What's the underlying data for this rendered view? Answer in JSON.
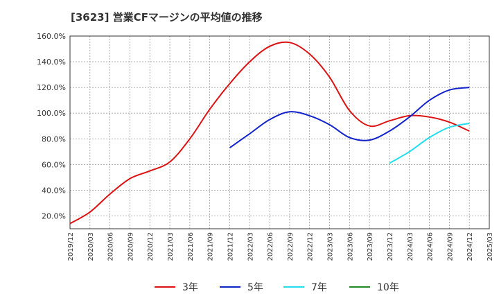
{
  "chart_data": {
    "type": "line",
    "title": "[3623]  営業CFマージンの平均値の推移",
    "xlabel": "",
    "ylabel": "",
    "x_ticks": [
      "2019/12",
      "2020/03",
      "2020/06",
      "2020/09",
      "2020/12",
      "2021/03",
      "2021/06",
      "2021/09",
      "2021/12",
      "2022/03",
      "2022/06",
      "2022/09",
      "2022/12",
      "2023/03",
      "2023/06",
      "2023/09",
      "2023/12",
      "2024/03",
      "2024/06",
      "2024/09",
      "2024/12",
      "2025/03"
    ],
    "y_ticks": [
      "20.0%",
      "40.0%",
      "60.0%",
      "80.0%",
      "100.0%",
      "120.0%",
      "140.0%",
      "160.0%"
    ],
    "ylim": [
      10,
      160
    ],
    "grid": true,
    "legend_position": "bottom",
    "series": [
      {
        "name": "3年",
        "color": "#dd1111",
        "values": [
          [
            "2019/12",
            14
          ],
          [
            "2020/03",
            23
          ],
          [
            "2020/06",
            37
          ],
          [
            "2020/09",
            49
          ],
          [
            "2020/12",
            55
          ],
          [
            "2021/03",
            62
          ],
          [
            "2021/06",
            80
          ],
          [
            "2021/09",
            103
          ],
          [
            "2021/12",
            123
          ],
          [
            "2022/03",
            140
          ],
          [
            "2022/06",
            152
          ],
          [
            "2022/09",
            155
          ],
          [
            "2022/12",
            146
          ],
          [
            "2023/03",
            128
          ],
          [
            "2023/06",
            102
          ],
          [
            "2023/09",
            90
          ],
          [
            "2023/12",
            94
          ],
          [
            "2024/03",
            98
          ],
          [
            "2024/06",
            97
          ],
          [
            "2024/09",
            93
          ],
          [
            "2024/12",
            86
          ]
        ]
      },
      {
        "name": "5年",
        "color": "#1122cc",
        "values": [
          [
            "2021/12",
            73
          ],
          [
            "2022/03",
            84
          ],
          [
            "2022/06",
            95
          ],
          [
            "2022/09",
            101
          ],
          [
            "2022/12",
            98
          ],
          [
            "2023/03",
            91
          ],
          [
            "2023/06",
            81
          ],
          [
            "2023/09",
            79
          ],
          [
            "2023/12",
            86
          ],
          [
            "2024/03",
            97
          ],
          [
            "2024/06",
            110
          ],
          [
            "2024/09",
            118
          ],
          [
            "2024/12",
            120
          ]
        ]
      },
      {
        "name": "7年",
        "color": "#22ddee",
        "values": [
          [
            "2023/12",
            61
          ],
          [
            "2024/03",
            70
          ],
          [
            "2024/06",
            81
          ],
          [
            "2024/09",
            89
          ],
          [
            "2024/12",
            92
          ]
        ]
      },
      {
        "name": "10年",
        "color": "#228822",
        "values": []
      }
    ]
  }
}
